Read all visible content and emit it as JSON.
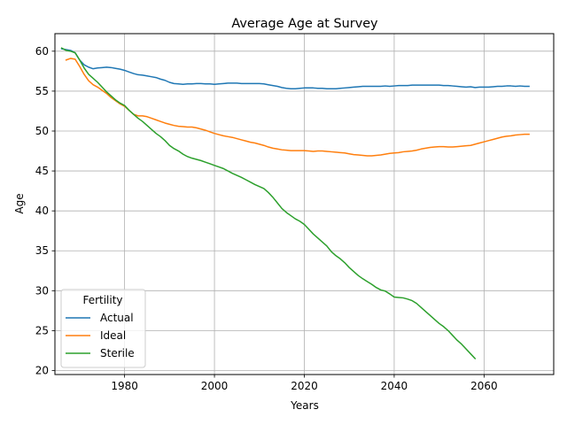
{
  "chart_data": {
    "type": "line",
    "title": "Average Age at Survey",
    "xlabel": "Years",
    "ylabel": "Age",
    "xlim": [
      1964.5,
      2075.5
    ],
    "ylim": [
      19.5,
      62.2
    ],
    "xticks": [
      1980,
      2000,
      2020,
      2040,
      2060
    ],
    "yticks": [
      20,
      25,
      30,
      35,
      40,
      45,
      50,
      55,
      60
    ],
    "grid": true,
    "legend": {
      "title": "Fertility",
      "placement": "lower left"
    },
    "series": [
      {
        "name": "Actual",
        "color": "#1f77b4",
        "x": [
          1966,
          1968,
          1969,
          1970,
          1971,
          1972,
          1973,
          1974,
          1975,
          1976,
          1977,
          1978,
          1979,
          1980,
          1981,
          1982,
          1983,
          1984,
          1985,
          1986,
          1987,
          1988,
          1989,
          1990,
          1991,
          1992,
          1993,
          1994,
          1995,
          1996,
          1997,
          1998,
          1999,
          2000,
          2001,
          2002,
          2003,
          2004,
          2005,
          2006,
          2007,
          2008,
          2009,
          2010,
          2011,
          2012,
          2013,
          2014,
          2015,
          2016,
          2017,
          2018,
          2019,
          2020,
          2021,
          2022,
          2023,
          2024,
          2025,
          2026,
          2027,
          2028,
          2029,
          2030,
          2031,
          2032,
          2033,
          2034,
          2035,
          2036,
          2037,
          2038,
          2039,
          2040,
          2041,
          2042,
          2043,
          2044,
          2045,
          2046,
          2047,
          2048,
          2049,
          2050,
          2051,
          2052,
          2053,
          2054,
          2055,
          2056,
          2057,
          2058,
          2059,
          2060,
          2061,
          2062,
          2063,
          2064,
          2065,
          2066,
          2067,
          2068,
          2069,
          2070
        ],
        "y": [
          60.3,
          60.1,
          59.8,
          58.9,
          58.3,
          58.0,
          57.8,
          57.9,
          57.95,
          58.0,
          57.95,
          57.85,
          57.75,
          57.6,
          57.4,
          57.2,
          57.05,
          57.0,
          56.9,
          56.8,
          56.7,
          56.5,
          56.35,
          56.1,
          55.95,
          55.9,
          55.85,
          55.9,
          55.9,
          55.95,
          55.95,
          55.9,
          55.9,
          55.85,
          55.9,
          55.95,
          56.0,
          56.0,
          56.0,
          55.95,
          55.95,
          55.95,
          55.95,
          55.95,
          55.9,
          55.8,
          55.7,
          55.6,
          55.45,
          55.35,
          55.3,
          55.3,
          55.35,
          55.4,
          55.4,
          55.4,
          55.35,
          55.35,
          55.3,
          55.3,
          55.3,
          55.35,
          55.4,
          55.45,
          55.5,
          55.55,
          55.6,
          55.6,
          55.6,
          55.6,
          55.6,
          55.65,
          55.6,
          55.65,
          55.7,
          55.7,
          55.7,
          55.75,
          55.75,
          55.75,
          55.75,
          55.75,
          55.75,
          55.75,
          55.7,
          55.7,
          55.65,
          55.6,
          55.55,
          55.5,
          55.55,
          55.45,
          55.5,
          55.5,
          55.5,
          55.55,
          55.6,
          55.6,
          55.65,
          55.65,
          55.6,
          55.65,
          55.6,
          55.6
        ]
      },
      {
        "name": "Ideal",
        "color": "#ff7f0e",
        "x": [
          1967,
          1968,
          1969,
          1970,
          1971,
          1972,
          1973,
          1974,
          1975,
          1976,
          1977,
          1978,
          1979,
          1980,
          1981,
          1982,
          1983,
          1984,
          1985,
          1986,
          1987,
          1988,
          1989,
          1990,
          1991,
          1992,
          1993,
          1994,
          1995,
          1996,
          1997,
          1998,
          1999,
          2000,
          2001,
          2002,
          2003,
          2004,
          2005,
          2006,
          2007,
          2008,
          2009,
          2010,
          2011,
          2012,
          2013,
          2014,
          2015,
          2016,
          2017,
          2018,
          2019,
          2020,
          2021,
          2022,
          2023,
          2024,
          2025,
          2026,
          2027,
          2028,
          2029,
          2030,
          2031,
          2032,
          2033,
          2034,
          2035,
          2036,
          2037,
          2038,
          2039,
          2040,
          2041,
          2042,
          2043,
          2044,
          2045,
          2046,
          2047,
          2048,
          2049,
          2050,
          2051,
          2052,
          2053,
          2054,
          2055,
          2056,
          2057,
          2058,
          2059,
          2060,
          2061,
          2062,
          2063,
          2064,
          2065,
          2066,
          2067,
          2068,
          2069,
          2070
        ],
        "y": [
          58.9,
          59.1,
          59.0,
          58.1,
          57.1,
          56.3,
          55.8,
          55.5,
          55.1,
          54.7,
          54.2,
          53.8,
          53.4,
          53.1,
          52.6,
          52.1,
          51.9,
          51.9,
          51.8,
          51.6,
          51.4,
          51.2,
          51.0,
          50.85,
          50.7,
          50.6,
          50.55,
          50.5,
          50.5,
          50.4,
          50.25,
          50.1,
          49.9,
          49.7,
          49.55,
          49.4,
          49.3,
          49.2,
          49.05,
          48.9,
          48.75,
          48.6,
          48.5,
          48.35,
          48.2,
          48.0,
          47.85,
          47.75,
          47.65,
          47.6,
          47.55,
          47.55,
          47.55,
          47.55,
          47.5,
          47.45,
          47.5,
          47.5,
          47.45,
          47.4,
          47.35,
          47.3,
          47.25,
          47.15,
          47.05,
          47.0,
          46.95,
          46.9,
          46.9,
          46.95,
          47.0,
          47.1,
          47.2,
          47.25,
          47.3,
          47.4,
          47.45,
          47.5,
          47.6,
          47.75,
          47.85,
          47.95,
          48.0,
          48.05,
          48.05,
          48.0,
          48.0,
          48.05,
          48.1,
          48.15,
          48.2,
          48.35,
          48.5,
          48.65,
          48.8,
          48.95,
          49.1,
          49.25,
          49.35,
          49.4,
          49.5,
          49.55,
          49.6,
          49.6
        ]
      },
      {
        "name": "Sterile",
        "color": "#2ca02c",
        "x": [
          1966,
          1967,
          1968,
          1969,
          1970,
          1971,
          1972,
          1973,
          1974,
          1975,
          1976,
          1977,
          1978,
          1979,
          1980,
          1981,
          1982,
          1983,
          1984,
          1985,
          1986,
          1987,
          1988,
          1989,
          1990,
          1991,
          1992,
          1993,
          1994,
          1995,
          1996,
          1997,
          1998,
          1999,
          2000,
          2001,
          2002,
          2003,
          2004,
          2005,
          2006,
          2007,
          2008,
          2009,
          2010,
          2011,
          2012,
          2013,
          2014,
          2015,
          2016,
          2017,
          2018,
          2019,
          2020,
          2021,
          2022,
          2023,
          2024,
          2025,
          2026,
          2027,
          2028,
          2029,
          2030,
          2031,
          2032,
          2033,
          2034,
          2035,
          2036,
          2037,
          2038,
          2039,
          2040,
          2041,
          2042,
          2043,
          2044,
          2045,
          2046,
          2047,
          2048,
          2049,
          2050,
          2051,
          2052,
          2053,
          2054,
          2055,
          2056,
          2057,
          2058
        ],
        "y": [
          60.4,
          60.1,
          60.0,
          59.8,
          58.9,
          57.9,
          57.1,
          56.6,
          56.1,
          55.5,
          54.9,
          54.4,
          53.9,
          53.5,
          53.2,
          52.6,
          52.1,
          51.6,
          51.2,
          50.7,
          50.2,
          49.7,
          49.3,
          48.8,
          48.2,
          47.8,
          47.5,
          47.1,
          46.8,
          46.6,
          46.45,
          46.3,
          46.1,
          45.9,
          45.7,
          45.5,
          45.3,
          45.0,
          44.7,
          44.45,
          44.2,
          43.9,
          43.6,
          43.3,
          43.05,
          42.8,
          42.3,
          41.7,
          41.0,
          40.3,
          39.8,
          39.4,
          39.0,
          38.7,
          38.3,
          37.7,
          37.1,
          36.6,
          36.1,
          35.6,
          34.9,
          34.4,
          34.0,
          33.5,
          32.9,
          32.4,
          31.9,
          31.5,
          31.15,
          30.8,
          30.4,
          30.1,
          29.95,
          29.6,
          29.2,
          29.15,
          29.1,
          28.95,
          28.75,
          28.4,
          27.9,
          27.4,
          26.9,
          26.4,
          25.9,
          25.5,
          25.0,
          24.4,
          23.8,
          23.3,
          22.7,
          22.1,
          21.5
        ]
      }
    ]
  }
}
